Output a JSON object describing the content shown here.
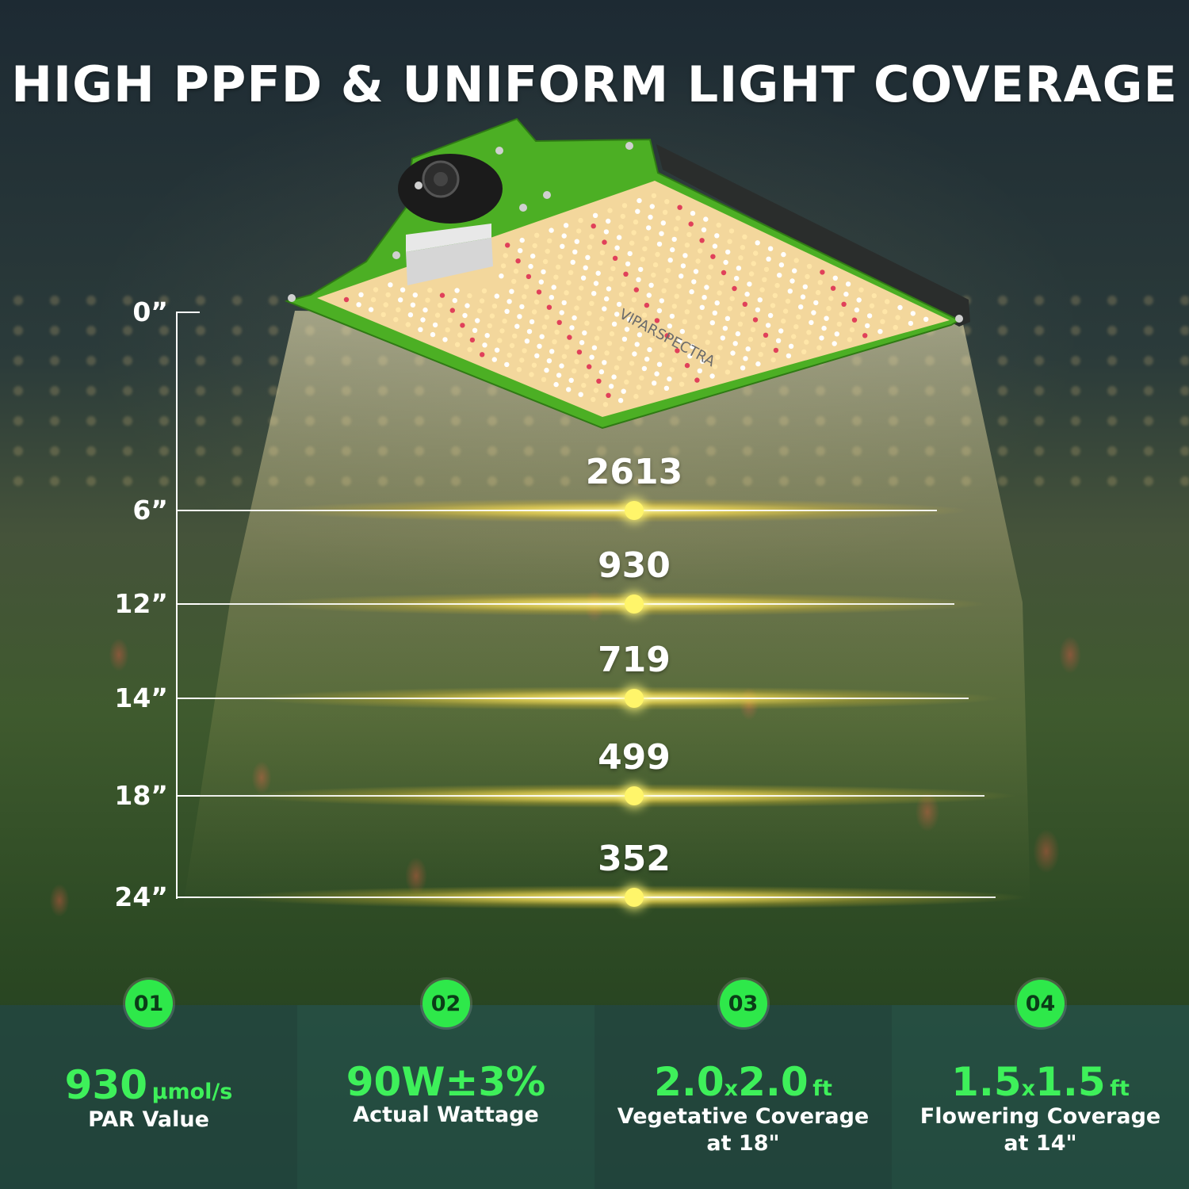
{
  "title": "HIGH PPFD & UNIFORM LIGHT COVERAGE",
  "lamp": {
    "brand_text": "VIPARSPECTRA",
    "panel_color": "#4caf24",
    "led_board_color": "#f3d79c"
  },
  "height_scale": {
    "labels": [
      "0”",
      "6”",
      "12”",
      "14”",
      "18”",
      "24”"
    ]
  },
  "chart_data": {
    "type": "table",
    "heights_in": [
      6,
      12,
      14,
      18,
      24
    ],
    "ppfd_values": [
      2613,
      930,
      719,
      499,
      352
    ],
    "ppfd_labels": [
      "2613",
      "930",
      "719",
      "499",
      "352"
    ]
  },
  "features": [
    {
      "badge": "01",
      "main": "930",
      "unit": "μmol/s",
      "caption_lines": [
        "PAR Value"
      ]
    },
    {
      "badge": "02",
      "main": "90W±3%",
      "unit": "",
      "caption_lines": [
        "Actual Wattage"
      ]
    },
    {
      "badge": "03",
      "dim_a": "2.0",
      "x": "x",
      "dim_b": "2.0",
      "unit": "ft",
      "caption_lines": [
        "Vegetative Coverage",
        "at 18\""
      ]
    },
    {
      "badge": "04",
      "dim_a": "1.5",
      "x": "x",
      "dim_b": "1.5",
      "unit": "ft",
      "caption_lines": [
        "Flowering Coverage",
        "at 14\""
      ]
    }
  ],
  "colors": {
    "accent_green": "#3ef05a",
    "badge_green": "#2ee84a",
    "band_yellow": "#fff56a"
  }
}
